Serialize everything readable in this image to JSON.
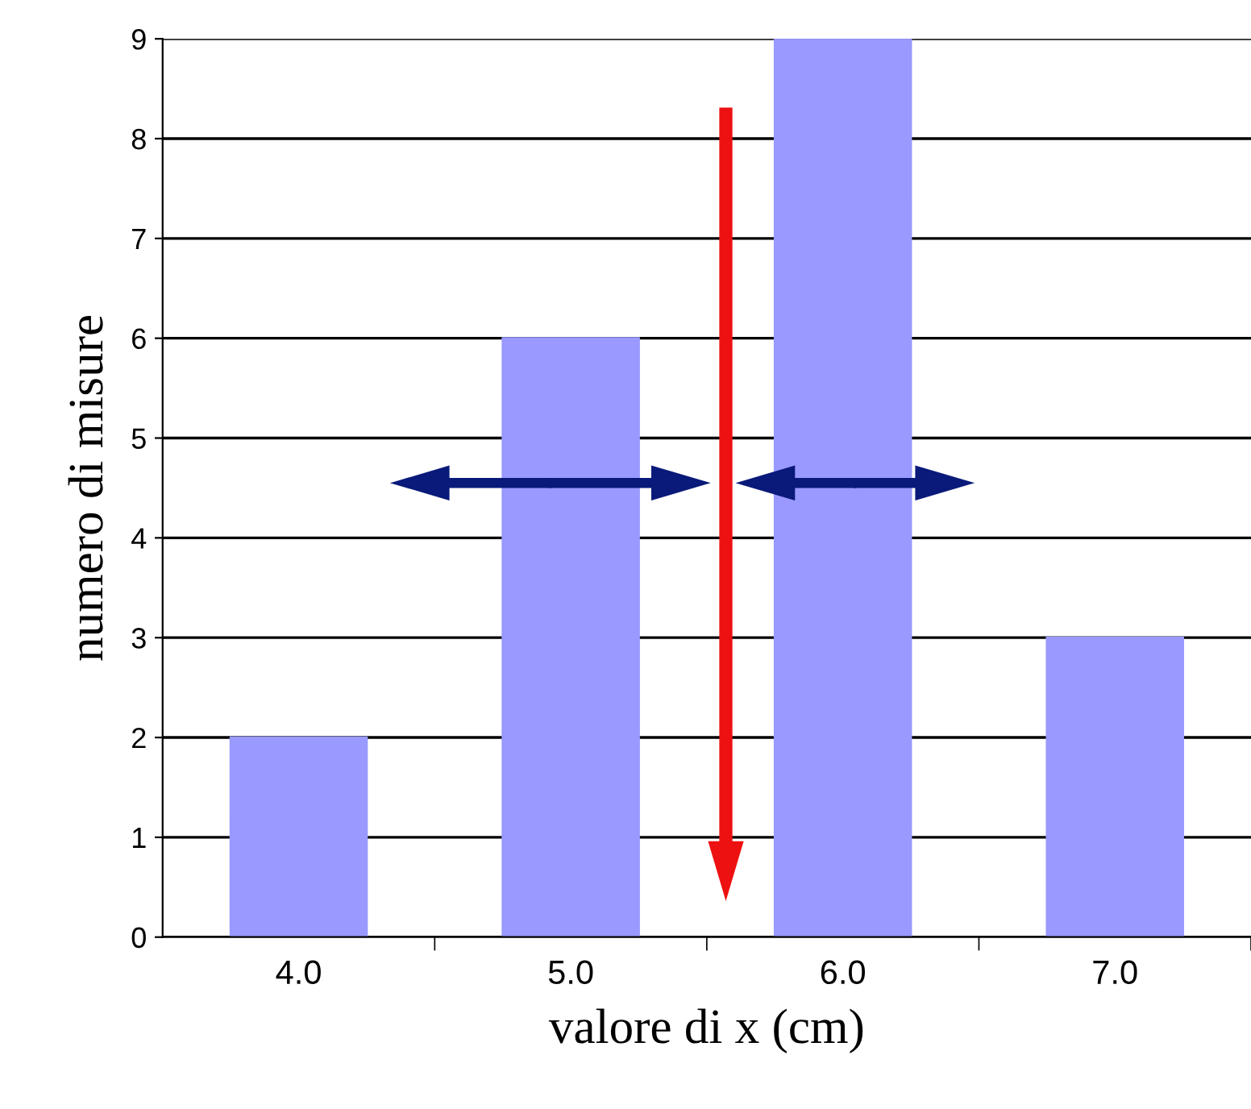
{
  "chart_data": {
    "type": "bar",
    "xlabel": "valore di x (cm)",
    "ylabel": "numero di misure",
    "categories": [
      "4.0",
      "5.0",
      "6.0",
      "7.0"
    ],
    "values": [
      2,
      6,
      9,
      3
    ],
    "color": "#9999ff",
    "ylim": [
      0,
      9
    ],
    "yticks": [
      0,
      1,
      2,
      3,
      4,
      5,
      6,
      7,
      8,
      9
    ],
    "grid": "y"
  }
}
